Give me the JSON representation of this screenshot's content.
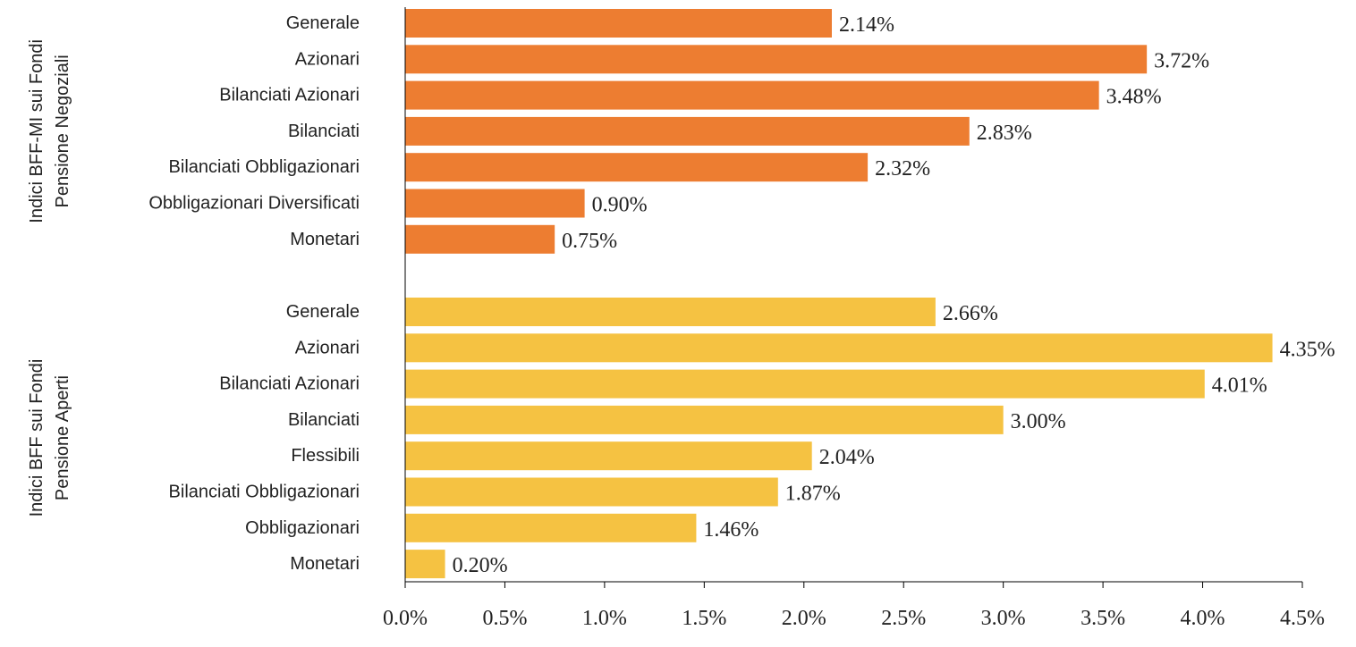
{
  "chart_data": {
    "type": "bar",
    "orientation": "horizontal",
    "xlim": [
      0,
      4.5
    ],
    "x_ticks": [
      "0.0%",
      "0.5%",
      "1.0%",
      "1.5%",
      "2.0%",
      "2.5%",
      "3.0%",
      "3.5%",
      "4.0%",
      "4.5%"
    ],
    "x_tick_values": [
      0,
      0.5,
      1.0,
      1.5,
      2.0,
      2.5,
      3.0,
      3.5,
      4.0,
      4.5
    ],
    "grid": false,
    "groups": [
      {
        "label_lines": [
          "Indici BFF-MI sui Fondi",
          "Pensione Negoziali"
        ],
        "color": "#ED7D31",
        "categories": [
          "Generale",
          "Azionari",
          "Bilanciati Azionari",
          "Bilanciati",
          "Bilanciati Obbligazionari",
          "Obbligazionari Diversificati",
          "Monetari"
        ],
        "values": [
          2.14,
          3.72,
          3.48,
          2.83,
          2.32,
          0.9,
          0.75
        ],
        "value_labels": [
          "2.14%",
          "3.72%",
          "3.48%",
          "2.83%",
          "2.32%",
          "0.90%",
          "0.75%"
        ]
      },
      {
        "label_lines": [
          "Indici BFF sui Fondi",
          "Pensione Aperti"
        ],
        "color": "#F5C242",
        "categories": [
          "Generale",
          "Azionari",
          "Bilanciati Azionari",
          "Bilanciati",
          "Flessibili",
          "Bilanciati Obbligazionari",
          "Obbligazionari",
          "Monetari"
        ],
        "values": [
          2.66,
          4.35,
          4.01,
          3.0,
          2.04,
          1.87,
          1.46,
          0.2
        ],
        "value_labels": [
          "2.66%",
          "4.35%",
          "4.01%",
          "3.00%",
          "2.04%",
          "1.87%",
          "1.46%",
          "0.20%"
        ]
      }
    ]
  }
}
